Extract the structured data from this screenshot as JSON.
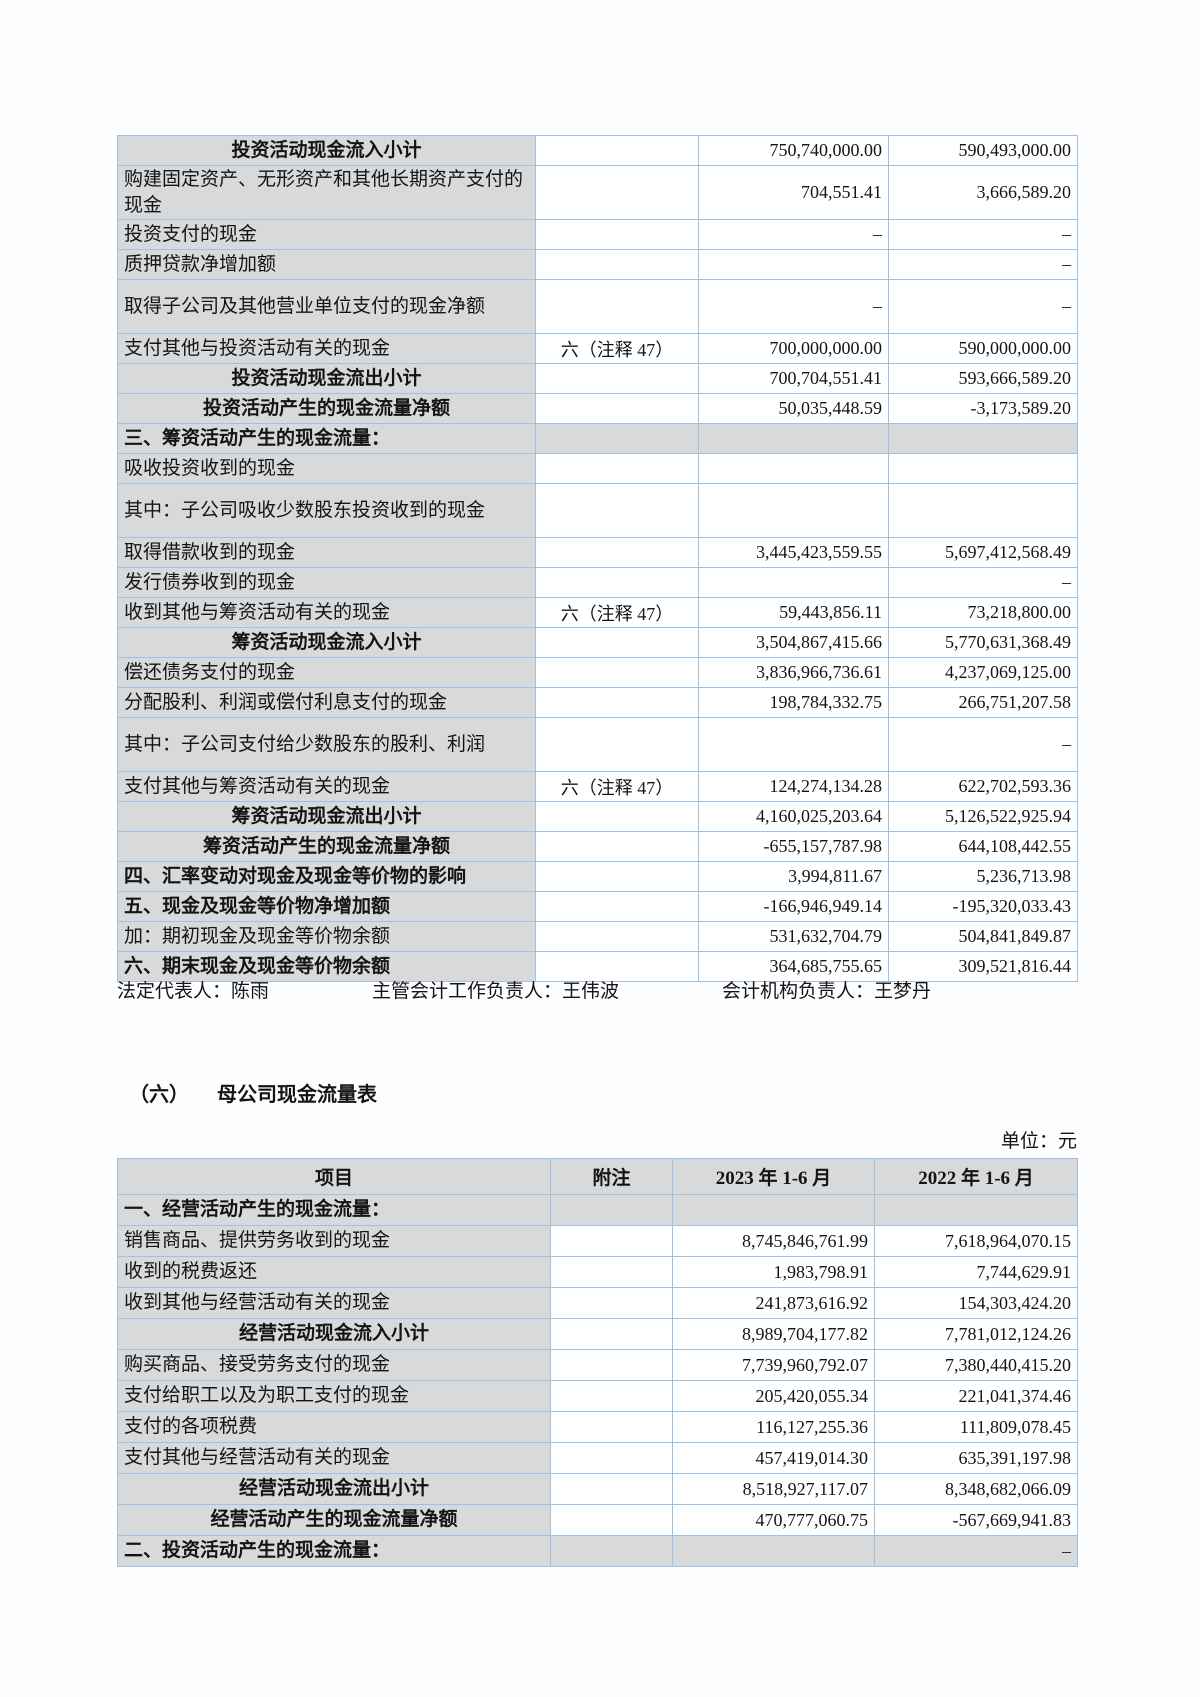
{
  "page": {
    "section_title_index": "（六）",
    "section_title": "母公司现金流量表",
    "unit_label": "单位：元",
    "signatures": {
      "legal_rep": "法定代表人：陈雨",
      "chief_accountant": "主管会计工作负责人：王伟波",
      "accounting_head": "会计机构负责人：王梦丹"
    },
    "colors": {
      "border": "#9cc2e5",
      "shade": "#d9d9d9",
      "page": "#fefefe",
      "text": "#141414"
    }
  },
  "consolidated_cashflow_table": {
    "rows": [
      {
        "label": "投资活动现金流入小计",
        "note": "",
        "v2023": "750,740,000.00",
        "v2022": "590,493,000.00",
        "style": "subtotal"
      },
      {
        "label": "购建固定资产、无形资产和其他长期资产支付的现金",
        "note": "",
        "v2023": "704,551.41",
        "v2022": "3,666,589.20",
        "style": "item",
        "tall": true
      },
      {
        "label": "投资支付的现金",
        "note": "",
        "v2023": "–",
        "v2022": "–",
        "style": "item"
      },
      {
        "label": "质押贷款净增加额",
        "note": "",
        "v2023": "",
        "v2022": "–",
        "style": "item"
      },
      {
        "label": "取得子公司及其他营业单位支付的现金净额",
        "note": "",
        "v2023": "–",
        "v2022": "–",
        "style": "item",
        "tall": true
      },
      {
        "label": "支付其他与投资活动有关的现金",
        "note": "六（注释 47）",
        "v2023": "700,000,000.00",
        "v2022": "590,000,000.00",
        "style": "item"
      },
      {
        "label": "投资活动现金流出小计",
        "note": "",
        "v2023": "700,704,551.41",
        "v2022": "593,666,589.20",
        "style": "subtotal"
      },
      {
        "label": "投资活动产生的现金流量净额",
        "note": "",
        "v2023": "50,035,448.59",
        "v2022": "-3,173,589.20",
        "style": "subtotal"
      },
      {
        "label": "三、筹资活动产生的现金流量：",
        "note": "",
        "v2023": "",
        "v2022": "",
        "style": "section"
      },
      {
        "label": "吸收投资收到的现金",
        "note": "",
        "v2023": "",
        "v2022": "",
        "style": "item"
      },
      {
        "label": "其中：子公司吸收少数股东投资收到的现金",
        "note": "",
        "v2023": "",
        "v2022": "",
        "style": "item",
        "tall": true
      },
      {
        "label": "取得借款收到的现金",
        "note": "",
        "v2023": "3,445,423,559.55",
        "v2022": "5,697,412,568.49",
        "style": "item"
      },
      {
        "label": "发行债券收到的现金",
        "note": "",
        "v2023": "",
        "v2022": "–",
        "style": "item"
      },
      {
        "label": "收到其他与筹资活动有关的现金",
        "note": "六（注释 47）",
        "v2023": "59,443,856.11",
        "v2022": "73,218,800.00",
        "style": "item"
      },
      {
        "label": "筹资活动现金流入小计",
        "note": "",
        "v2023": "3,504,867,415.66",
        "v2022": "5,770,631,368.49",
        "style": "subtotal"
      },
      {
        "label": "偿还债务支付的现金",
        "note": "",
        "v2023": "3,836,966,736.61",
        "v2022": "4,237,069,125.00",
        "style": "item"
      },
      {
        "label": "分配股利、利润或偿付利息支付的现金",
        "note": "",
        "v2023": "198,784,332.75",
        "v2022": "266,751,207.58",
        "style": "item"
      },
      {
        "label": "其中：子公司支付给少数股东的股利、利润",
        "note": "",
        "v2023": "",
        "v2022": "–",
        "style": "item",
        "tall": true
      },
      {
        "label": "支付其他与筹资活动有关的现金",
        "note": "六（注释 47）",
        "v2023": "124,274,134.28",
        "v2022": "622,702,593.36",
        "style": "item"
      },
      {
        "label": "筹资活动现金流出小计",
        "note": "",
        "v2023": "4,160,025,203.64",
        "v2022": "5,126,522,925.94",
        "style": "subtotal"
      },
      {
        "label": "筹资活动产生的现金流量净额",
        "note": "",
        "v2023": "-655,157,787.98",
        "v2022": "644,108,442.55",
        "style": "subtotal"
      },
      {
        "label": "四、汇率变动对现金及现金等价物的影响",
        "note": "",
        "v2023": "3,994,811.67",
        "v2022": "5,236,713.98",
        "style": "bold"
      },
      {
        "label": "五、现金及现金等价物净增加额",
        "note": "",
        "v2023": "-166,946,949.14",
        "v2022": "-195,320,033.43",
        "style": "bold"
      },
      {
        "label": "加：期初现金及现金等价物余额",
        "note": "",
        "v2023": "531,632,704.79",
        "v2022": "504,841,849.87",
        "style": "item"
      },
      {
        "label": "六、期末现金及现金等价物余额",
        "note": "",
        "v2023": "364,685,755.65",
        "v2022": "309,521,816.44",
        "style": "bold"
      }
    ]
  },
  "parent_cashflow_table": {
    "headers": [
      "项目",
      "附注",
      "2023 年 1-6 月",
      "2022 年 1-6 月"
    ],
    "rows": [
      {
        "label": "一、经营活动产生的现金流量：",
        "note": "",
        "v2023": "",
        "v2022": "",
        "style": "section"
      },
      {
        "label": "销售商品、提供劳务收到的现金",
        "note": "",
        "v2023": "8,745,846,761.99",
        "v2022": "7,618,964,070.15",
        "style": "item"
      },
      {
        "label": "收到的税费返还",
        "note": "",
        "v2023": "1,983,798.91",
        "v2022": "7,744,629.91",
        "style": "item"
      },
      {
        "label": "收到其他与经营活动有关的现金",
        "note": "",
        "v2023": "241,873,616.92",
        "v2022": "154,303,424.20",
        "style": "item"
      },
      {
        "label": "经营活动现金流入小计",
        "note": "",
        "v2023": "8,989,704,177.82",
        "v2022": "7,781,012,124.26",
        "style": "subtotal"
      },
      {
        "label": "购买商品、接受劳务支付的现金",
        "note": "",
        "v2023": "7,739,960,792.07",
        "v2022": "7,380,440,415.20",
        "style": "item"
      },
      {
        "label": "支付给职工以及为职工支付的现金",
        "note": "",
        "v2023": "205,420,055.34",
        "v2022": "221,041,374.46",
        "style": "item"
      },
      {
        "label": "支付的各项税费",
        "note": "",
        "v2023": "116,127,255.36",
        "v2022": "111,809,078.45",
        "style": "item"
      },
      {
        "label": "支付其他与经营活动有关的现金",
        "note": "",
        "v2023": "457,419,014.30",
        "v2022": "635,391,197.98",
        "style": "item"
      },
      {
        "label": "经营活动现金流出小计",
        "note": "",
        "v2023": "8,518,927,117.07",
        "v2022": "8,348,682,066.09",
        "style": "subtotal"
      },
      {
        "label": "经营活动产生的现金流量净额",
        "note": "",
        "v2023": "470,777,060.75",
        "v2022": "-567,669,941.83",
        "style": "subtotal"
      },
      {
        "label": "二、投资活动产生的现金流量：",
        "note": "",
        "v2023": "",
        "v2022": "–",
        "style": "section"
      }
    ]
  }
}
